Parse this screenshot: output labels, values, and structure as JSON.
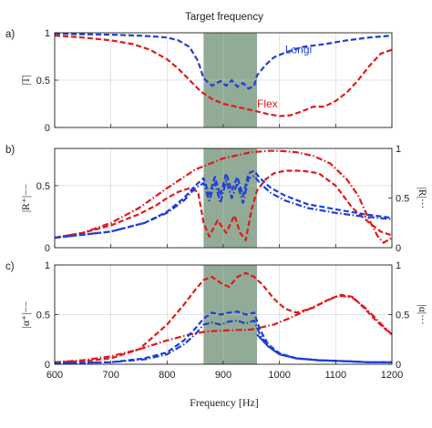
{
  "figure": {
    "top_label": "Target frequency",
    "xlabel": "Frequency [Hz]",
    "band": {
      "x0": 865,
      "x1": 960,
      "color": "#8faa94"
    },
    "xlim": [
      600,
      1200
    ],
    "xticks": [
      600,
      700,
      800,
      900,
      1000,
      1100,
      1200
    ],
    "colors": {
      "longi": "#1f3fd6",
      "flex": "#e01a1a"
    }
  },
  "chart_data": [
    {
      "type": "line",
      "panel_label": "a)",
      "ylabel": "|T|",
      "ylim": [
        0,
        1
      ],
      "yticks": [
        0,
        0.5,
        1
      ],
      "annotations": [
        {
          "text": "Longi",
          "x": 1010,
          "y": 0.82,
          "color": "#1f3fd6"
        },
        {
          "text": "Flex",
          "x": 960,
          "y": 0.25,
          "color": "#e01a1a"
        }
      ],
      "series": [
        {
          "color": "#1f3fd6",
          "style": "dashed",
          "x": [
            600,
            650,
            700,
            750,
            780,
            800,
            820,
            840,
            855,
            865,
            880,
            895,
            905,
            915,
            925,
            935,
            945,
            955,
            960,
            975,
            990,
            1010,
            1040,
            1080,
            1120,
            1160,
            1200
          ],
          "y": [
            0.99,
            0.985,
            0.98,
            0.97,
            0.96,
            0.95,
            0.92,
            0.85,
            0.7,
            0.52,
            0.44,
            0.49,
            0.44,
            0.5,
            0.43,
            0.47,
            0.41,
            0.44,
            0.55,
            0.66,
            0.74,
            0.79,
            0.85,
            0.88,
            0.92,
            0.95,
            0.97
          ]
        },
        {
          "color": "#e01a1a",
          "style": "dashed",
          "x": [
            600,
            650,
            700,
            740,
            770,
            800,
            820,
            840,
            860,
            880,
            900,
            930,
            960,
            980,
            1000,
            1020,
            1040,
            1060,
            1080,
            1100,
            1120,
            1140,
            1160,
            1180,
            1200
          ],
          "y": [
            0.97,
            0.95,
            0.92,
            0.88,
            0.82,
            0.72,
            0.62,
            0.5,
            0.38,
            0.3,
            0.25,
            0.21,
            0.17,
            0.14,
            0.12,
            0.13,
            0.17,
            0.22,
            0.22,
            0.28,
            0.37,
            0.5,
            0.65,
            0.78,
            0.82
          ]
        }
      ]
    },
    {
      "type": "line",
      "panel_label": "b)",
      "ylabel": "|R⁺|−−",
      "ylabel_right": "|R|···",
      "ylim": [
        0,
        0.8
      ],
      "yticks": [
        0,
        0.5
      ],
      "right_ylim": [
        0,
        1
      ],
      "right_yticks": [
        0,
        0.5,
        1
      ],
      "series": [
        {
          "color": "#e01a1a",
          "style": "dashdot",
          "x": [
            600,
            650,
            700,
            750,
            800,
            850,
            900,
            950,
            980,
            1000,
            1030,
            1060,
            1090,
            1120,
            1140,
            1160,
            1175,
            1185,
            1200
          ],
          "y": [
            0.08,
            0.12,
            0.2,
            0.32,
            0.48,
            0.63,
            0.72,
            0.77,
            0.78,
            0.78,
            0.77,
            0.74,
            0.68,
            0.55,
            0.42,
            0.22,
            0.09,
            0.04,
            0.08
          ]
        },
        {
          "color": "#e01a1a",
          "style": "dashed",
          "x": [
            600,
            650,
            700,
            750,
            780,
            800,
            820,
            840,
            855,
            865,
            875,
            890,
            905,
            920,
            930,
            940,
            950,
            960,
            975,
            990,
            1010,
            1040,
            1070,
            1100,
            1130,
            1160,
            1180,
            1200
          ],
          "y": [
            0.08,
            0.12,
            0.18,
            0.27,
            0.34,
            0.4,
            0.45,
            0.48,
            0.45,
            0.2,
            0.09,
            0.22,
            0.12,
            0.26,
            0.12,
            0.06,
            0.3,
            0.46,
            0.55,
            0.6,
            0.62,
            0.62,
            0.6,
            0.5,
            0.32,
            0.2,
            0.13,
            0.1
          ]
        },
        {
          "color": "#1f3fd6",
          "style": "dashdot",
          "x": [
            600,
            700,
            760,
            800,
            830,
            850,
            865,
            875,
            885,
            895,
            905,
            915,
            925,
            935,
            945,
            955,
            965,
            985,
            1010,
            1050,
            1100,
            1150,
            1200
          ],
          "y": [
            0.08,
            0.13,
            0.2,
            0.28,
            0.38,
            0.48,
            0.52,
            0.38,
            0.52,
            0.36,
            0.54,
            0.4,
            0.52,
            0.36,
            0.56,
            0.58,
            0.52,
            0.44,
            0.38,
            0.32,
            0.28,
            0.25,
            0.23
          ]
        },
        {
          "color": "#1f3fd6",
          "style": "dashed",
          "x": [
            600,
            700,
            760,
            800,
            830,
            850,
            865,
            875,
            885,
            895,
            905,
            915,
            925,
            935,
            945,
            955,
            965,
            985,
            1010,
            1050,
            1100,
            1150,
            1200
          ],
          "y": [
            0.08,
            0.13,
            0.2,
            0.29,
            0.4,
            0.5,
            0.56,
            0.43,
            0.57,
            0.42,
            0.6,
            0.46,
            0.57,
            0.42,
            0.6,
            0.62,
            0.56,
            0.48,
            0.42,
            0.35,
            0.31,
            0.27,
            0.24
          ]
        }
      ]
    },
    {
      "type": "line",
      "panel_label": "c)",
      "ylabel": "|α⁺|−−",
      "ylabel_right": "|α|···",
      "ylim": [
        0,
        1
      ],
      "yticks": [
        0,
        0.5,
        1
      ],
      "right_ylim": [
        0,
        1
      ],
      "right_yticks": [
        0,
        0.5,
        1
      ],
      "series": [
        {
          "color": "#e01a1a",
          "style": "dashed",
          "x": [
            600,
            650,
            700,
            750,
            800,
            830,
            850,
            865,
            880,
            895,
            910,
            925,
            940,
            955,
            970,
            990,
            1010,
            1030,
            1060,
            1090,
            1110,
            1130,
            1150,
            1170,
            1185,
            1200
          ],
          "y": [
            0.02,
            0.03,
            0.06,
            0.15,
            0.4,
            0.6,
            0.75,
            0.85,
            0.88,
            0.82,
            0.78,
            0.88,
            0.92,
            0.88,
            0.8,
            0.66,
            0.56,
            0.52,
            0.57,
            0.66,
            0.7,
            0.68,
            0.57,
            0.45,
            0.37,
            0.3
          ]
        },
        {
          "color": "#e01a1a",
          "style": "dashdot",
          "x": [
            600,
            650,
            700,
            750,
            800,
            840,
            870,
            900,
            950,
            990,
            1020,
            1050,
            1080,
            1100,
            1110,
            1130,
            1150,
            1170,
            1185,
            1200
          ],
          "y": [
            0.02,
            0.04,
            0.08,
            0.15,
            0.24,
            0.3,
            0.33,
            0.34,
            0.35,
            0.4,
            0.47,
            0.55,
            0.63,
            0.68,
            0.69,
            0.67,
            0.58,
            0.47,
            0.38,
            0.3
          ]
        },
        {
          "color": "#1f3fd6",
          "style": "dashdot",
          "x": [
            600,
            700,
            760,
            800,
            830,
            850,
            865,
            880,
            895,
            910,
            925,
            940,
            955,
            965,
            980,
            1000,
            1030,
            1070,
            1120,
            1160,
            1200
          ],
          "y": [
            0.01,
            0.02,
            0.05,
            0.1,
            0.2,
            0.3,
            0.4,
            0.42,
            0.4,
            0.43,
            0.44,
            0.41,
            0.44,
            0.3,
            0.18,
            0.1,
            0.06,
            0.04,
            0.03,
            0.02,
            0.02
          ]
        },
        {
          "color": "#1f3fd6",
          "style": "dashed",
          "x": [
            600,
            700,
            760,
            800,
            830,
            850,
            865,
            880,
            895,
            910,
            925,
            940,
            955,
            965,
            980,
            1000,
            1030,
            1070,
            1120,
            1160,
            1200
          ],
          "y": [
            0.01,
            0.02,
            0.06,
            0.12,
            0.24,
            0.36,
            0.46,
            0.52,
            0.5,
            0.52,
            0.53,
            0.5,
            0.52,
            0.35,
            0.2,
            0.11,
            0.06,
            0.04,
            0.03,
            0.02,
            0.02
          ]
        },
        {
          "color": "#1f3fd6",
          "style": "solid",
          "x": [
            960,
            980,
            1000,
            1030,
            1070,
            1120,
            1160,
            1200
          ],
          "y": [
            0.3,
            0.18,
            0.1,
            0.06,
            0.04,
            0.03,
            0.02,
            0.02
          ]
        }
      ]
    }
  ]
}
